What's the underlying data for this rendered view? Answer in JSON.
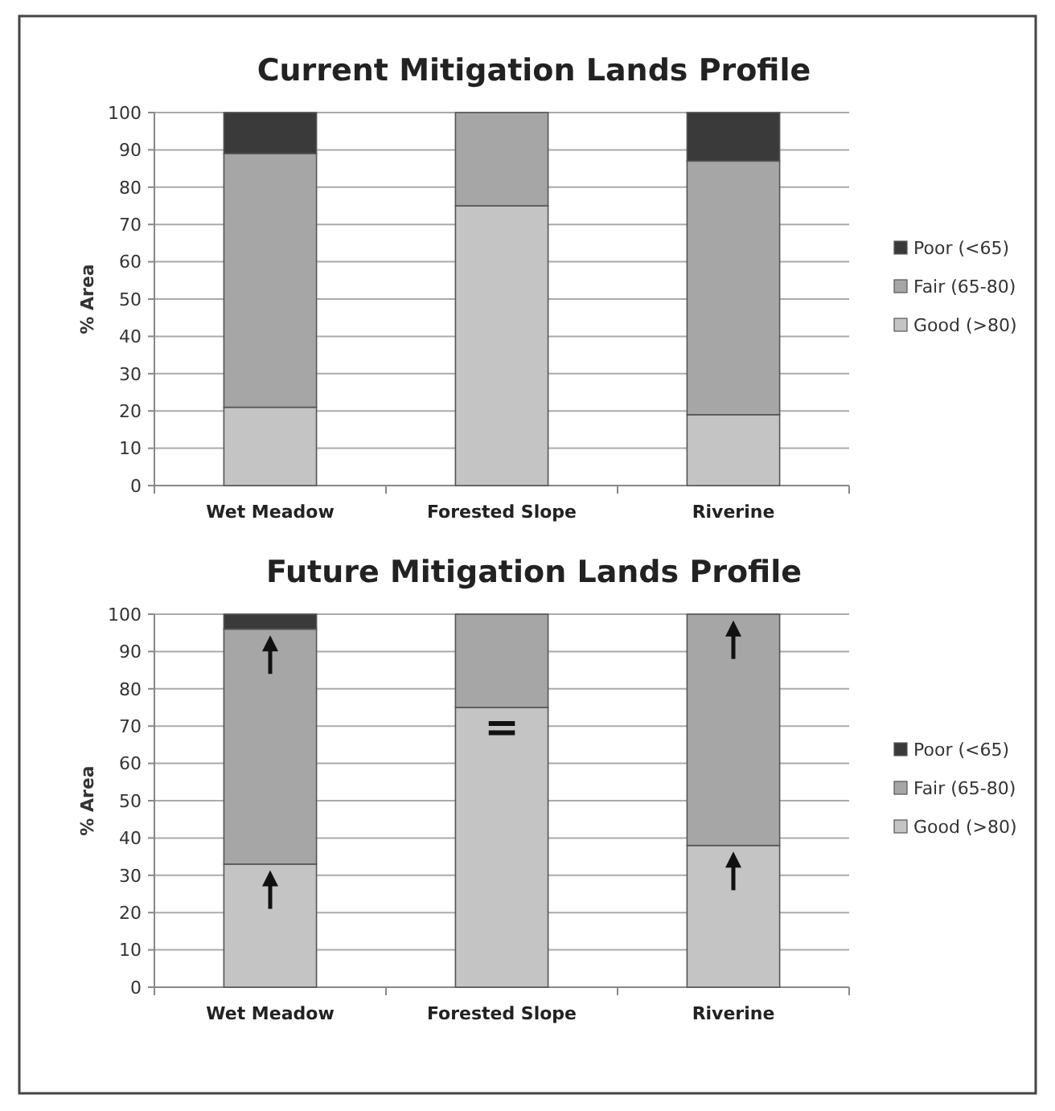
{
  "chart_data": [
    {
      "type": "bar",
      "title": "Current Mitigation Lands Profile",
      "ylabel": "% Area",
      "categories": [
        "Wet Meadow",
        "Forested Slope",
        "Riverine"
      ],
      "stacked": true,
      "ylim": [
        0,
        100
      ],
      "yticks": [
        0,
        10,
        20,
        30,
        40,
        50,
        60,
        70,
        80,
        90,
        100
      ],
      "grid": "y",
      "legend": "right",
      "series": [
        {
          "name": "Good (>80)",
          "color": "#c4c4c4",
          "values": [
            21,
            75,
            19
          ]
        },
        {
          "name": "Fair (65-80)",
          "color": "#a6a6a6",
          "values": [
            68,
            25,
            68
          ]
        },
        {
          "name": "Poor (<65)",
          "color": "#3a3a3a",
          "values": [
            11,
            0,
            13
          ]
        }
      ]
    },
    {
      "type": "bar",
      "title": "Future Mitigation Lands Profile",
      "ylabel": "% Area",
      "categories": [
        "Wet Meadow",
        "Forested Slope",
        "Riverine"
      ],
      "stacked": true,
      "ylim": [
        0,
        100
      ],
      "yticks": [
        0,
        10,
        20,
        30,
        40,
        50,
        60,
        70,
        80,
        90,
        100
      ],
      "grid": "y",
      "legend": "right",
      "annotations": [
        "="
      ],
      "series": [
        {
          "name": "Good (>80)",
          "color": "#c4c4c4",
          "values": [
            33,
            75,
            38
          ]
        },
        {
          "name": "Fair (65-80)",
          "color": "#a6a6a6",
          "values": [
            63,
            25,
            62
          ]
        },
        {
          "name": "Poor (<65)",
          "color": "#3a3a3a",
          "values": [
            4,
            0,
            0
          ]
        }
      ]
    }
  ]
}
